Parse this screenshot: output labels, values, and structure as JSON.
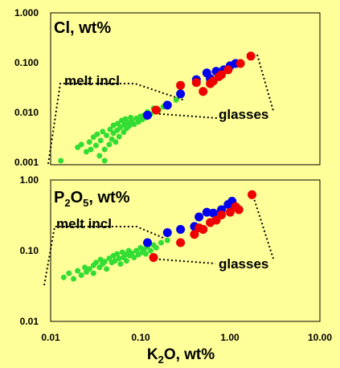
{
  "chart_data": [
    {
      "type": "scatter",
      "title": "Cl, wt%",
      "x_scale": "log",
      "y_scale": "log",
      "xlim": [
        0.01,
        10
      ],
      "ylim": [
        0.001,
        1
      ],
      "x_ticks": [
        "0.01",
        "0.10",
        "1.00",
        "10.00"
      ],
      "y_ticks": [
        "0.001",
        "0.010",
        "0.100",
        "1.000"
      ],
      "grid": false,
      "annotations": [
        "melt incl",
        "glasses"
      ],
      "series": [
        {
          "color": "#33dd33",
          "points": [
            [
              0.013,
              0.0012
            ],
            [
              0.02,
              0.0022
            ],
            [
              0.022,
              0.0025
            ],
            [
              0.025,
              0.0018
            ],
            [
              0.027,
              0.0028
            ],
            [
              0.028,
              0.002
            ],
            [
              0.03,
              0.0035
            ],
            [
              0.032,
              0.0024
            ],
            [
              0.033,
              0.004
            ],
            [
              0.035,
              0.0015
            ],
            [
              0.036,
              0.003
            ],
            [
              0.038,
              0.0045
            ],
            [
              0.04,
              0.0012
            ],
            [
              0.04,
              0.002
            ],
            [
              0.042,
              0.0038
            ],
            [
              0.045,
              0.0025
            ],
            [
              0.046,
              0.005
            ],
            [
              0.048,
              0.0032
            ],
            [
              0.05,
              0.0042
            ],
            [
              0.05,
              0.006
            ],
            [
              0.053,
              0.0028
            ],
            [
              0.055,
              0.0048
            ],
            [
              0.056,
              0.0065
            ],
            [
              0.058,
              0.0036
            ],
            [
              0.06,
              0.0055
            ],
            [
              0.062,
              0.0075
            ],
            [
              0.065,
              0.0044
            ],
            [
              0.066,
              0.0062
            ],
            [
              0.068,
              0.008
            ],
            [
              0.07,
              0.0052
            ],
            [
              0.072,
              0.0068
            ],
            [
              0.075,
              0.0058
            ],
            [
              0.078,
              0.0085
            ],
            [
              0.08,
              0.0072
            ],
            [
              0.085,
              0.0063
            ],
            [
              0.09,
              0.0082
            ],
            [
              0.095,
              0.007
            ],
            [
              0.1,
              0.009
            ],
            [
              0.105,
              0.0078
            ],
            [
              0.11,
              0.0095
            ],
            [
              0.115,
              0.0085
            ],
            [
              0.12,
              0.011
            ],
            [
              0.13,
              0.01
            ],
            [
              0.14,
              0.013
            ],
            [
              0.16,
              0.012
            ],
            [
              0.18,
              0.014
            ],
            [
              0.2,
              0.016
            ],
            [
              0.25,
              0.019
            ]
          ]
        },
        {
          "color": "#0000ee",
          "points": [
            [
              0.12,
              0.0095
            ],
            [
              0.2,
              0.015
            ],
            [
              0.28,
              0.025
            ],
            [
              0.42,
              0.048
            ],
            [
              0.55,
              0.065
            ],
            [
              0.6,
              0.05
            ],
            [
              0.7,
              0.07
            ],
            [
              0.85,
              0.075
            ],
            [
              1.0,
              0.09
            ],
            [
              1.15,
              0.1
            ]
          ]
        },
        {
          "color": "#ee0000",
          "points": [
            [
              0.15,
              0.012
            ],
            [
              0.28,
              0.037
            ],
            [
              0.42,
              0.042
            ],
            [
              0.5,
              0.028
            ],
            [
              0.6,
              0.04
            ],
            [
              0.65,
              0.045
            ],
            [
              0.75,
              0.055
            ],
            [
              0.8,
              0.06
            ],
            [
              0.95,
              0.075
            ],
            [
              1.3,
              0.1
            ],
            [
              1.7,
              0.14
            ]
          ]
        }
      ]
    },
    {
      "type": "scatter",
      "title": "P2O5, wt%",
      "x_scale": "log",
      "y_scale": "log",
      "xlim": [
        0.01,
        10
      ],
      "ylim": [
        0.01,
        1
      ],
      "x_ticks": [
        "0.01",
        "0.10",
        "1.00",
        "10.00"
      ],
      "y_ticks": [
        "0.01",
        "0.10",
        "1.00"
      ],
      "xlabel": "K2O, wt%",
      "grid": false,
      "annotations": [
        "melt incl",
        "glasses"
      ],
      "series": [
        {
          "color": "#33dd33",
          "points": [
            [
              0.014,
              0.042
            ],
            [
              0.016,
              0.048
            ],
            [
              0.018,
              0.04
            ],
            [
              0.02,
              0.052
            ],
            [
              0.022,
              0.045
            ],
            [
              0.024,
              0.058
            ],
            [
              0.025,
              0.05
            ],
            [
              0.027,
              0.055
            ],
            [
              0.03,
              0.062
            ],
            [
              0.03,
              0.048
            ],
            [
              0.032,
              0.068
            ],
            [
              0.035,
              0.058
            ],
            [
              0.036,
              0.075
            ],
            [
              0.038,
              0.065
            ],
            [
              0.04,
              0.07
            ],
            [
              0.042,
              0.055
            ],
            [
              0.045,
              0.078
            ],
            [
              0.048,
              0.068
            ],
            [
              0.05,
              0.085
            ],
            [
              0.052,
              0.072
            ],
            [
              0.055,
              0.09
            ],
            [
              0.058,
              0.078
            ],
            [
              0.06,
              0.065
            ],
            [
              0.063,
              0.095
            ],
            [
              0.065,
              0.08
            ],
            [
              0.068,
              0.088
            ],
            [
              0.07,
              0.072
            ],
            [
              0.074,
              0.1
            ],
            [
              0.076,
              0.085
            ],
            [
              0.08,
              0.092
            ],
            [
              0.085,
              0.08
            ],
            [
              0.09,
              0.1
            ],
            [
              0.095,
              0.088
            ],
            [
              0.1,
              0.11
            ],
            [
              0.105,
              0.095
            ],
            [
              0.11,
              0.105
            ],
            [
              0.115,
              0.09
            ],
            [
              0.12,
              0.115
            ],
            [
              0.13,
              0.1
            ],
            [
              0.14,
              0.12
            ],
            [
              0.15,
              0.11
            ],
            [
              0.17,
              0.13
            ],
            [
              0.2,
              0.14
            ]
          ]
        },
        {
          "color": "#0000ee",
          "points": [
            [
              0.12,
              0.13
            ],
            [
              0.2,
              0.18
            ],
            [
              0.28,
              0.2
            ],
            [
              0.4,
              0.22
            ],
            [
              0.45,
              0.3
            ],
            [
              0.55,
              0.35
            ],
            [
              0.65,
              0.34
            ],
            [
              0.8,
              0.38
            ],
            [
              0.95,
              0.45
            ],
            [
              1.05,
              0.5
            ]
          ]
        },
        {
          "color": "#ee0000",
          "points": [
            [
              0.14,
              0.08
            ],
            [
              0.28,
              0.13
            ],
            [
              0.4,
              0.17
            ],
            [
              0.45,
              0.21
            ],
            [
              0.5,
              0.2
            ],
            [
              0.6,
              0.25
            ],
            [
              0.7,
              0.27
            ],
            [
              0.8,
              0.32
            ],
            [
              1.0,
              0.35
            ],
            [
              1.15,
              0.42
            ],
            [
              1.25,
              0.38
            ],
            [
              1.75,
              0.62
            ]
          ]
        }
      ]
    }
  ]
}
